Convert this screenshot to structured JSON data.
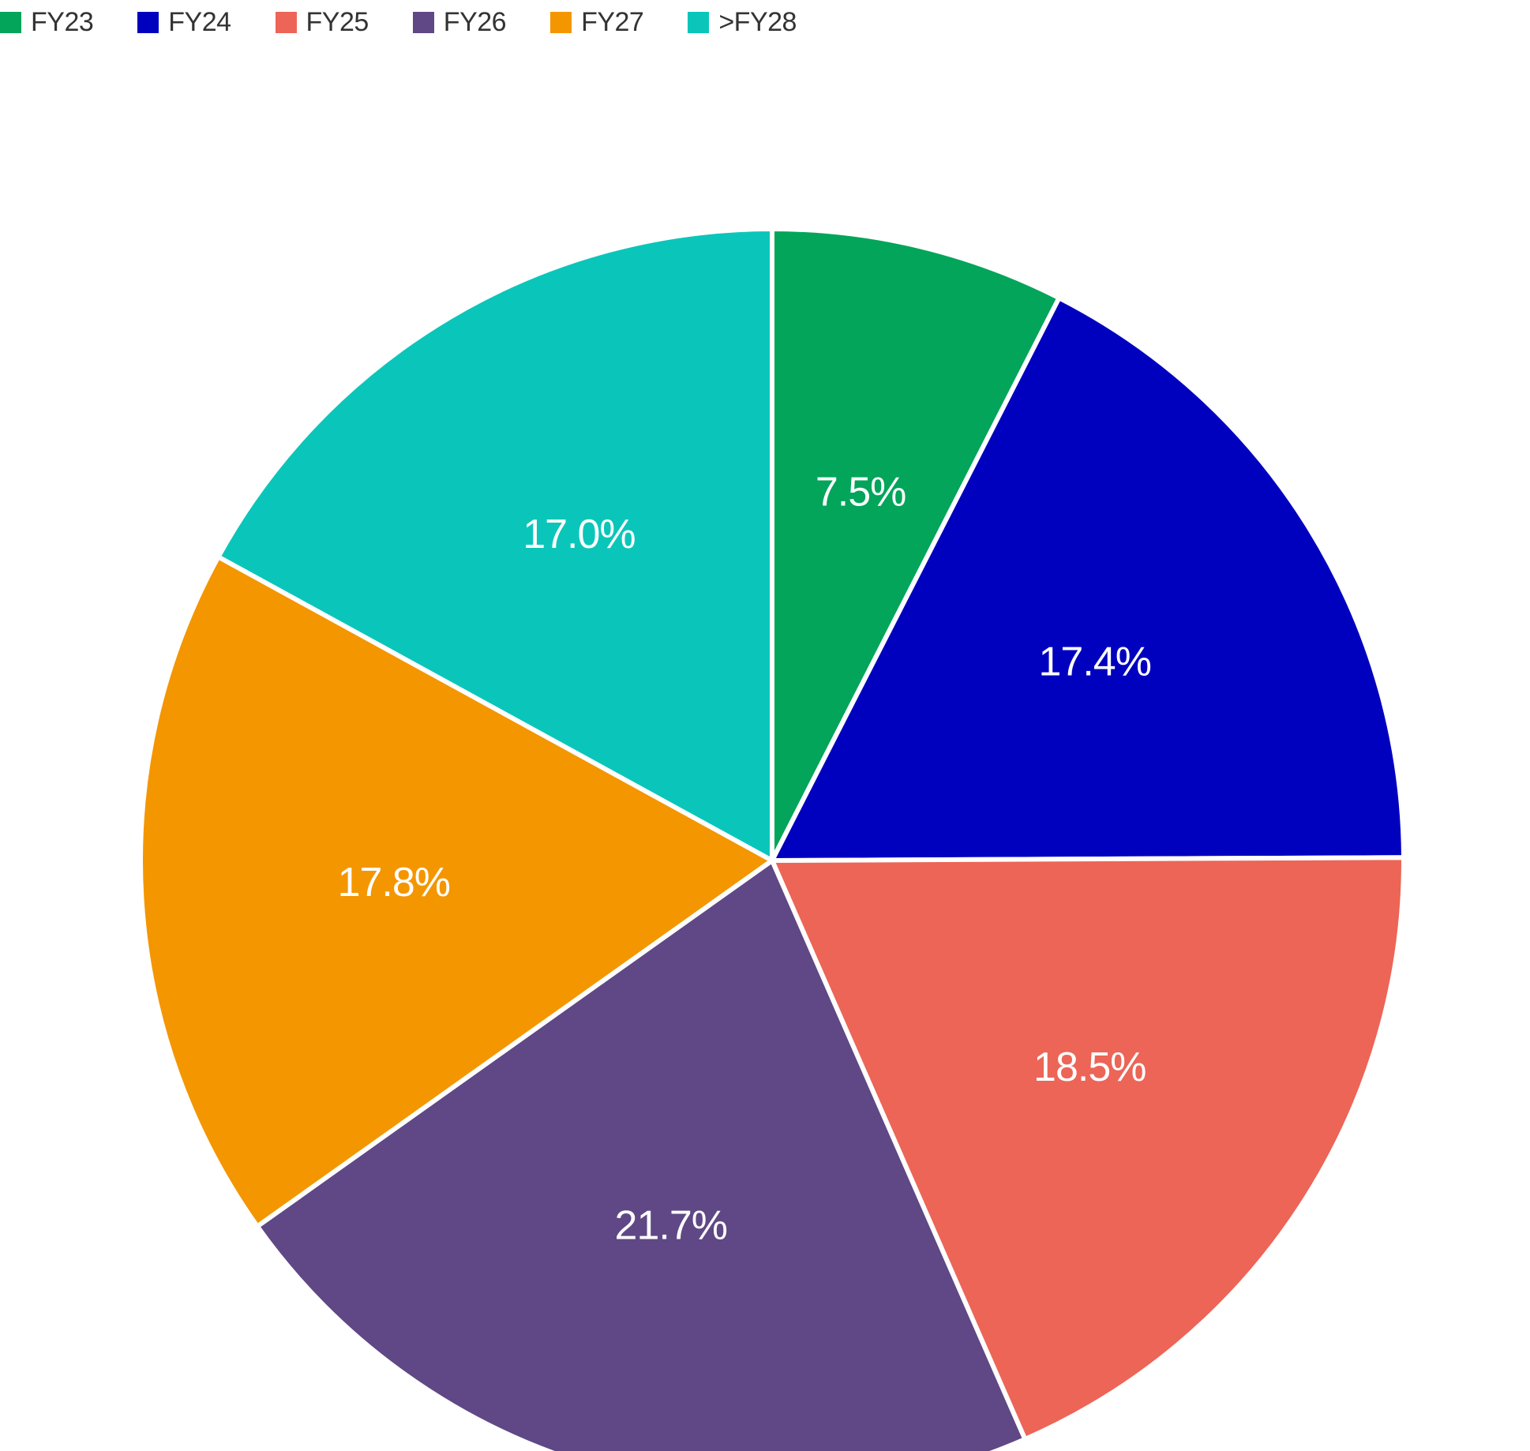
{
  "chart_data": {
    "type": "pie",
    "categories": [
      "FY23",
      "FY24",
      "FY25",
      "FY26",
      "FY27",
      ">FY28"
    ],
    "values": [
      7.5,
      17.4,
      18.5,
      21.7,
      17.8,
      17.0
    ],
    "labels": [
      "7.5%",
      "17.4%",
      "18.5%",
      "21.7%",
      "17.8%",
      "17.0%"
    ],
    "colors": [
      "#02A55A",
      "#0000BF",
      "#EC6557",
      "#5F4885",
      "#F49600",
      "#0AC6BA"
    ],
    "legend_placement": "top-left",
    "start_angle": "12 o'clock",
    "direction": "clockwise"
  }
}
